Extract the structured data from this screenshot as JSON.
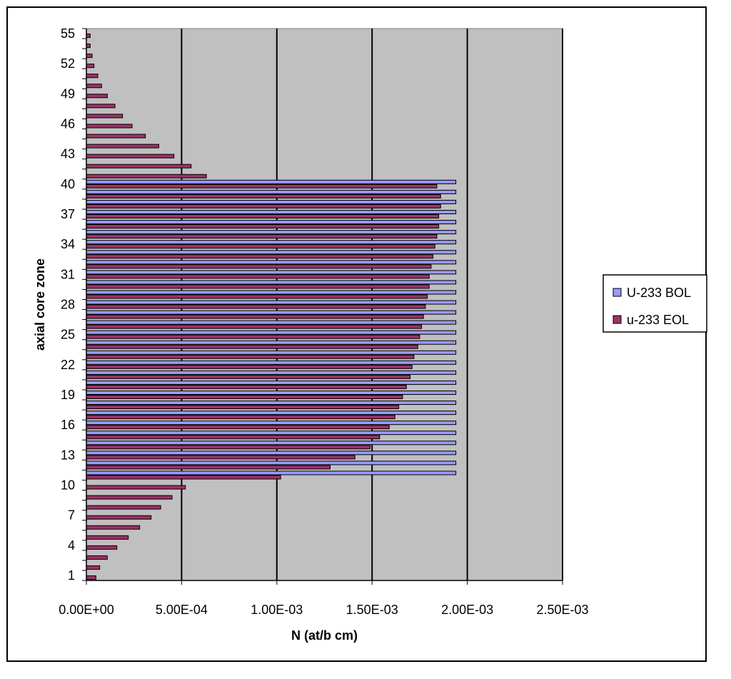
{
  "chart_data": {
    "type": "bar",
    "orientation": "horizontal",
    "xlabel": "N (at/b cm)",
    "ylabel": "axial core zone",
    "xlim": [
      0,
      0.0025
    ],
    "x_ticks": [
      "0.00E+00",
      "5.00E-04",
      "1.00E-03",
      "1.50E-03",
      "2.00E-03",
      "2.50E-03"
    ],
    "x_tick_values": [
      0,
      0.0005,
      0.001,
      0.0015,
      0.002,
      0.0025
    ],
    "y_tick_labels": [
      1,
      4,
      7,
      10,
      13,
      16,
      19,
      22,
      25,
      28,
      31,
      34,
      37,
      40,
      43,
      46,
      49,
      52,
      55
    ],
    "categories": [
      1,
      2,
      3,
      4,
      5,
      6,
      7,
      8,
      9,
      10,
      11,
      12,
      13,
      14,
      15,
      16,
      17,
      18,
      19,
      20,
      21,
      22,
      23,
      24,
      25,
      26,
      27,
      28,
      29,
      30,
      31,
      32,
      33,
      34,
      35,
      36,
      37,
      38,
      39,
      40,
      41,
      42,
      43,
      44,
      45,
      46,
      47,
      48,
      49,
      50,
      51,
      52,
      53,
      54,
      55
    ],
    "grid": "vertical",
    "plot_background": "#c0c0c0",
    "legend_position": "right",
    "series": [
      {
        "name": "U-233 BOL",
        "color": "#9999ff",
        "values": [
          0,
          0,
          0,
          0,
          0,
          0,
          0,
          0,
          0,
          0,
          0.00194,
          0.00194,
          0.00194,
          0.00194,
          0.00194,
          0.00194,
          0.00194,
          0.00194,
          0.00194,
          0.00194,
          0.00194,
          0.00194,
          0.00194,
          0.00194,
          0.00194,
          0.00194,
          0.00194,
          0.00194,
          0.00194,
          0.00194,
          0.00194,
          0.00194,
          0.00194,
          0.00194,
          0.00194,
          0.00194,
          0.00194,
          0.00194,
          0.00194,
          0.00194,
          0,
          0,
          0,
          0,
          0,
          0,
          0,
          0,
          0,
          0,
          0,
          0,
          0,
          0,
          0
        ]
      },
      {
        "name": "u-233 EOL",
        "color": "#993366",
        "values": [
          5e-05,
          7e-05,
          0.00011,
          0.00016,
          0.00022,
          0.00028,
          0.00034,
          0.00039,
          0.00045,
          0.00052,
          0.00102,
          0.00128,
          0.00141,
          0.00149,
          0.00154,
          0.00159,
          0.00162,
          0.00164,
          0.00166,
          0.00168,
          0.0017,
          0.00171,
          0.00172,
          0.00174,
          0.00175,
          0.00176,
          0.00177,
          0.00178,
          0.00179,
          0.0018,
          0.0018,
          0.00181,
          0.00182,
          0.00183,
          0.00184,
          0.00185,
          0.00185,
          0.00186,
          0.00186,
          0.00184,
          0.00063,
          0.00055,
          0.00046,
          0.00038,
          0.00031,
          0.00024,
          0.00019,
          0.00015,
          0.00011,
          8e-05,
          6e-05,
          4e-05,
          3e-05,
          2e-05,
          2e-05
        ]
      }
    ]
  }
}
